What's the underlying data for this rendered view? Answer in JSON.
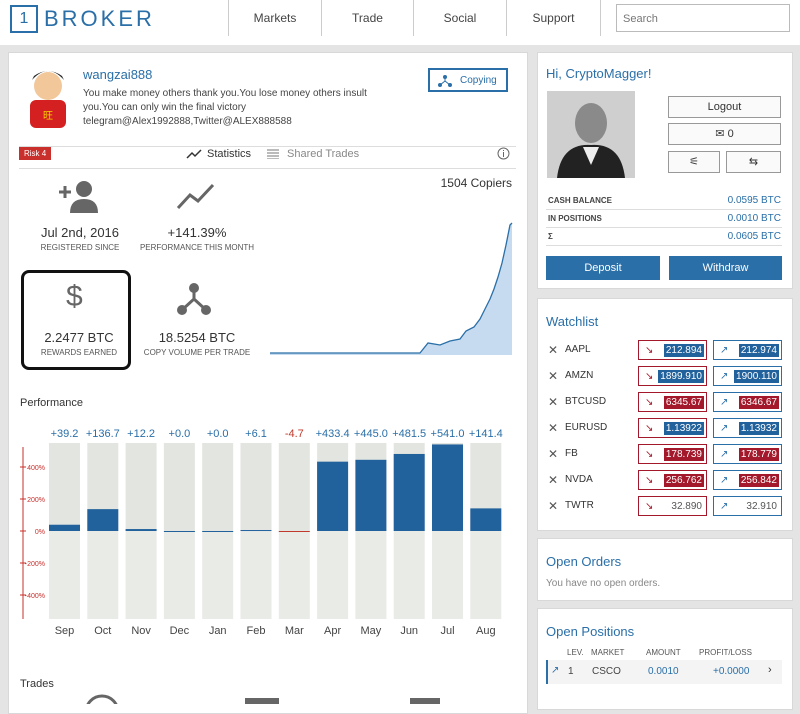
{
  "header": {
    "logo_number": "1",
    "logo": "BROKER",
    "nav": [
      "Markets",
      "Trade",
      "Social",
      "Support"
    ],
    "search": "Search"
  },
  "profile": {
    "username": "wangzai888",
    "bio": [
      "You make money others thank you.You lose money others insult",
      "you.You can only win the final victory",
      "telegram@Alex1992888,Twitter@ALEX888588"
    ],
    "button": "Copying",
    "risk": "Risk 4",
    "tabs": [
      "Statistics",
      "Shared Trades"
    ],
    "copiers": "1504 Copiers",
    "stats": [
      {
        "value": "Jul 2nd, 2016",
        "label": "REGISTERED SINCE"
      },
      {
        "value": "+141.39%",
        "label": "PERFORMANCE THIS MONTH"
      },
      {
        "value": "2.2477 BTC",
        "label": "REWARDS EARNED"
      },
      {
        "value": "18.5254 BTC",
        "label": "COPY VOLUME PER TRADE"
      }
    ]
  },
  "chart_data": {
    "type": "bar",
    "title": "Performance",
    "categories": [
      "Sep",
      "Oct",
      "Nov",
      "Dec",
      "Jan",
      "Feb",
      "Mar",
      "Apr",
      "May",
      "Jun",
      "Jul",
      "Aug"
    ],
    "values": [
      39.2,
      136.7,
      12.2,
      0.0,
      0.0,
      6.1,
      -4.7,
      433.4,
      445.0,
      481.5,
      541.0,
      141.4
    ],
    "value_labels": [
      "+39.2",
      "+136.7",
      "+12.2",
      "+0.0",
      "+0.0",
      "+6.1",
      "-4.7",
      "+433.4",
      "+445.0",
      "+481.5",
      "+541.0",
      "+141.4"
    ],
    "color": "#21629c",
    "negative_color": "#c0392b",
    "ylim": [
      -550,
      550
    ],
    "yticks": [
      {
        "value": 400,
        "label": "400%"
      },
      {
        "value": 200,
        "label": "200%"
      },
      {
        "value": 0,
        "label": "0%"
      },
      {
        "value": -200,
        "label": "-200%"
      },
      {
        "value": -400,
        "label": "-400%"
      }
    ]
  },
  "trades_title": "Trades",
  "account": {
    "greeting": "Hi, CryptoMagger!",
    "logout": "Logout",
    "messages": "0",
    "balances": [
      {
        "label": "CASH BALANCE",
        "value": "0.0595 BTC"
      },
      {
        "label": "IN POSITIONS",
        "value": "0.0010 BTC"
      },
      {
        "label": "Σ",
        "value": "0.0605 BTC"
      }
    ],
    "deposit": "Deposit",
    "withdraw": "Withdraw"
  },
  "watchlist": {
    "title": "Watchlist",
    "rows": [
      {
        "symbol": "AAPL",
        "bid": "212.894",
        "ask": "212.974",
        "color": "#21629c"
      },
      {
        "symbol": "AMZN",
        "bid": "1899.910",
        "ask": "1900.110",
        "color": "#21629c"
      },
      {
        "symbol": "BTCUSD",
        "bid": "6345.67",
        "ask": "6346.67",
        "color": "#a3192b"
      },
      {
        "symbol": "EURUSD",
        "bid": "1.13922",
        "ask": "1.13932",
        "color": "#21629c"
      },
      {
        "symbol": "FB",
        "bid": "178.739",
        "ask": "178.779",
        "color": "#a3192b"
      },
      {
        "symbol": "NVDA",
        "bid": "256.762",
        "ask": "256.842",
        "color": "#a3192b"
      },
      {
        "symbol": "TWTR",
        "bid": "32.890",
        "ask": "32.910",
        "color": "#ffffff"
      }
    ]
  },
  "open_orders": {
    "title": "Open Orders",
    "text": "You have no open orders."
  },
  "open_positions": {
    "title": "Open Positions",
    "headers": [
      "LEV.",
      "MARKET",
      "AMOUNT",
      "PROFIT/LOSS"
    ],
    "rows": [
      [
        "1",
        "CSCO",
        "0.0010",
        "+0.0000"
      ]
    ]
  }
}
